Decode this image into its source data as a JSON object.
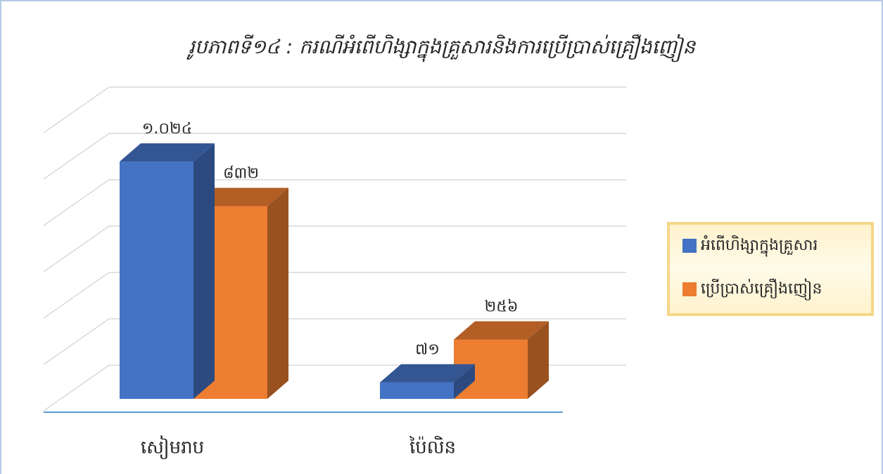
{
  "chart_data": {
    "type": "bar3d",
    "title": "រូបភាពទី១៤ : ករណីអំពើហិង្សាក្នុងគ្រួសារនិងការប្រើប្រាស់គ្រឿងញៀន",
    "categories": [
      "សៀមរាប",
      "ប៉ៃលិន"
    ],
    "series": [
      {
        "name": "អំពើហិង្សាក្នុងគ្រួសារ",
        "color": "#4472c4",
        "values": [
          1024,
          71
        ],
        "value_labels": [
          "១.០២៤",
          "៧១"
        ]
      },
      {
        "name": "ប្រើប្រាស់គ្រឿងញៀន",
        "color": "#ed7d31",
        "values": [
          832,
          256
        ],
        "value_labels": [
          "៨៣២",
          "២៥៦"
        ]
      }
    ],
    "ylim": [
      0,
      1200
    ],
    "yticks": [
      0,
      200,
      400,
      600,
      800,
      1000,
      1200
    ],
    "grid": true,
    "legend": "right"
  }
}
